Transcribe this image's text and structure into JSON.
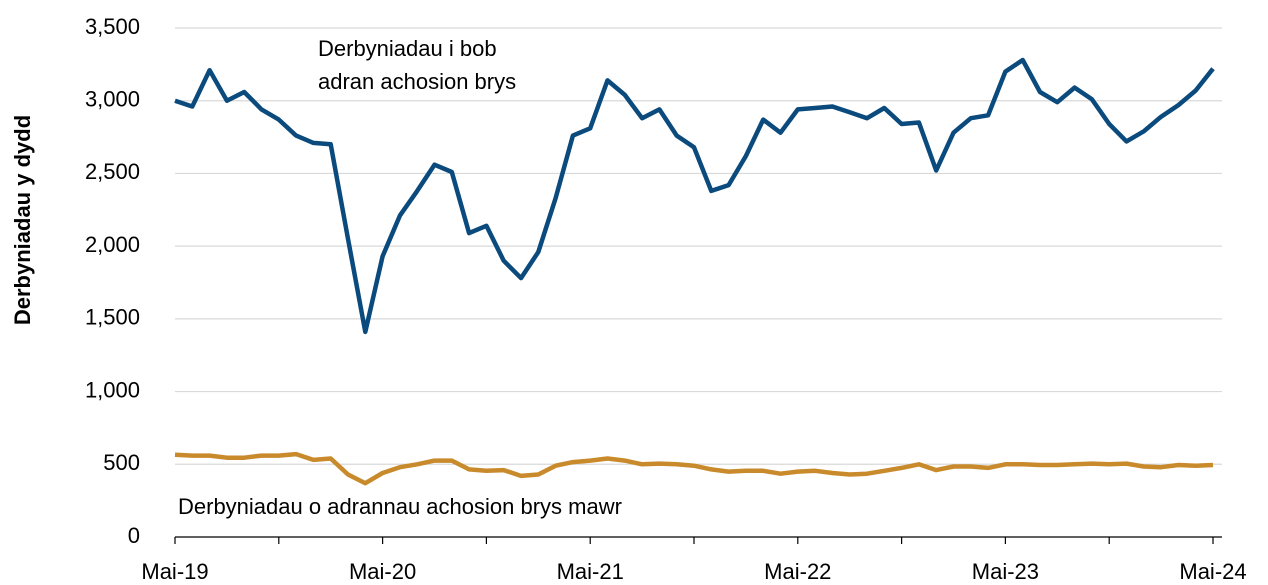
{
  "chart_data": {
    "type": "line",
    "ylabel": "Derbyniadau y dydd",
    "categories": [
      "Mai-19",
      null,
      null,
      null,
      null,
      null,
      null,
      null,
      null,
      null,
      null,
      null,
      "Mai-20",
      null,
      null,
      null,
      null,
      null,
      null,
      null,
      null,
      null,
      null,
      null,
      "Mai-21",
      null,
      null,
      null,
      null,
      null,
      null,
      null,
      null,
      null,
      null,
      null,
      "Mai-22",
      null,
      null,
      null,
      null,
      null,
      null,
      null,
      null,
      null,
      null,
      null,
      "Mai-23",
      null,
      null,
      null,
      null,
      null,
      null,
      null,
      null,
      null,
      null,
      null,
      "Mai-24"
    ],
    "series": [
      {
        "label_lines": [
          "Derbyniadau i bob",
          "adran achosion brys"
        ],
        "color": "#0b4a7d",
        "values": [
          3000,
          2960,
          3210,
          3000,
          3060,
          2940,
          2870,
          2760,
          2710,
          2700,
          2050,
          1410,
          1930,
          2210,
          2380,
          2560,
          2510,
          2090,
          2140,
          1900,
          1780,
          1960,
          2330,
          2760,
          2810,
          3140,
          3040,
          2880,
          2940,
          2760,
          2680,
          2380,
          2420,
          2620,
          2870,
          2780,
          2940,
          2950,
          2960,
          2920,
          2880,
          2950,
          2840,
          2850,
          2520,
          2780,
          2880,
          2900,
          3200,
          3280,
          3060,
          2990,
          3090,
          3010,
          2840,
          2720,
          2790,
          2890,
          2970,
          3070,
          3220
        ]
      },
      {
        "label_lines": [
          "Derbyniadau o adrannau achosion brys mawr"
        ],
        "color": "#c98a2c",
        "values": [
          565,
          560,
          560,
          545,
          545,
          560,
          560,
          570,
          530,
          540,
          430,
          370,
          440,
          480,
          500,
          525,
          525,
          465,
          455,
          460,
          420,
          430,
          490,
          515,
          525,
          540,
          525,
          500,
          505,
          500,
          490,
          465,
          450,
          455,
          455,
          435,
          450,
          455,
          440,
          430,
          435,
          455,
          475,
          500,
          460,
          485,
          485,
          475,
          500,
          500,
          495,
          495,
          500,
          505,
          500,
          505,
          485,
          480,
          495,
          490,
          495
        ]
      }
    ],
    "ylim": [
      0,
      3500
    ],
    "yticks": [
      0,
      500,
      {
        "value": 1000,
        "label": "1,000"
      },
      {
        "value": 1500,
        "label": "1,500"
      },
      {
        "value": 2000,
        "label": "2,000"
      },
      {
        "value": 2500,
        "label": "2,500"
      },
      {
        "value": 3000,
        "label": "3,000"
      },
      {
        "value": 3500,
        "label": "3,500"
      }
    ],
    "grid": true
  }
}
